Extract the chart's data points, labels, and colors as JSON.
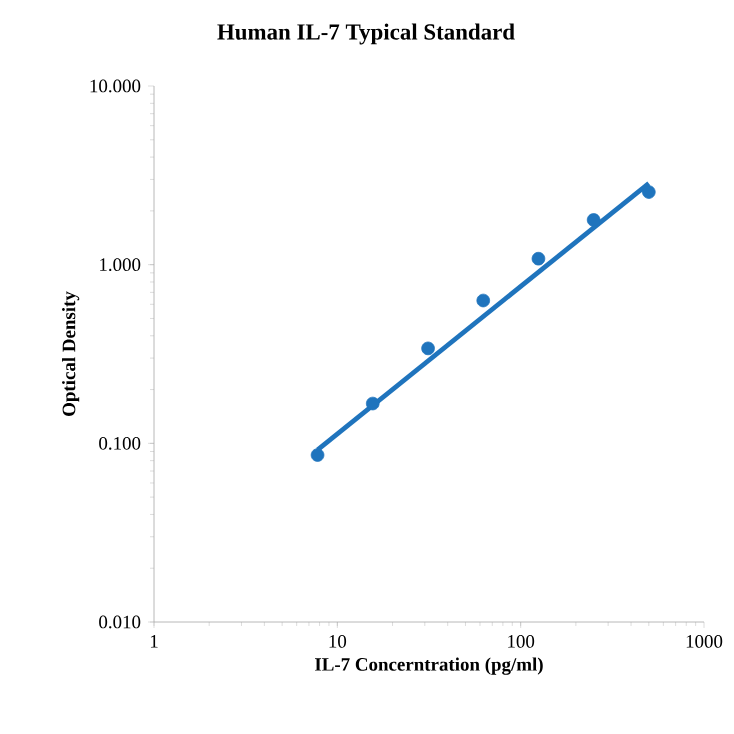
{
  "chart_data": {
    "type": "scatter",
    "title": "Human IL-7 Typical Standard",
    "xlabel": "IL-7 Concerntration (pg/ml)",
    "ylabel": "Optical Density",
    "log": "xy",
    "grid": false,
    "xlim": [
      1,
      1000
    ],
    "xticks": [
      1,
      10,
      100,
      1000
    ],
    "ylim": [
      0.01,
      10
    ],
    "yticks": [
      {
        "value": 0.01,
        "label": "0.010"
      },
      {
        "value": 0.1,
        "label": "0.100"
      },
      {
        "value": 1,
        "label": "1.000"
      },
      {
        "value": 10,
        "label": "10.000"
      }
    ],
    "series": [
      {
        "marker": "circle",
        "color": "#1f74bd",
        "x": [
          7.8,
          15.6,
          31.25,
          62.5,
          125,
          250,
          500
        ],
        "values": [
          0.086,
          0.167,
          0.34,
          0.63,
          1.08,
          1.78,
          2.55
        ]
      },
      {
        "type": "line",
        "color": "#1f74bd",
        "line_style": "solid",
        "marker": "none",
        "x": [
          7.8,
          500
        ],
        "values": [
          0.092,
          2.85
        ]
      }
    ]
  }
}
